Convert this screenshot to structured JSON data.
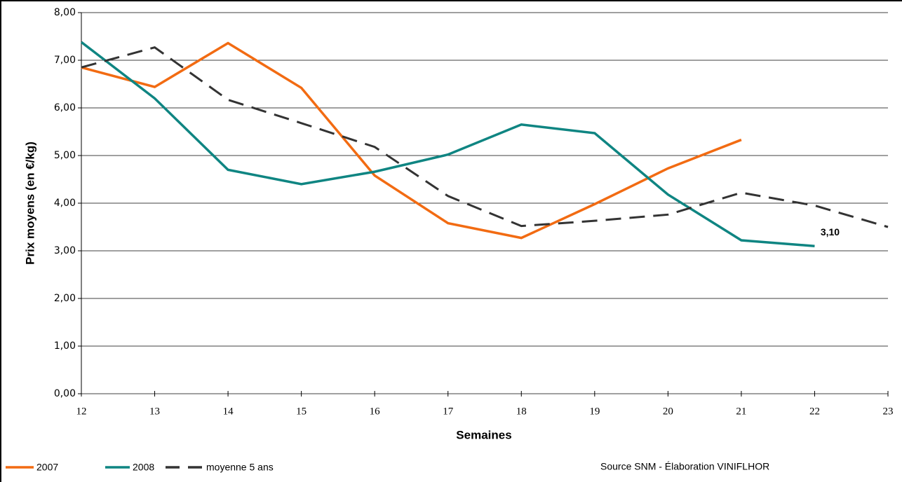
{
  "chart_data": {
    "type": "line",
    "x": [
      12,
      13,
      14,
      15,
      16,
      17,
      18,
      19,
      20,
      21,
      22,
      23
    ],
    "xlim": [
      12,
      23
    ],
    "xticks": [
      12,
      13,
      14,
      15,
      16,
      17,
      18,
      19,
      20,
      21,
      22,
      23
    ],
    "ylim": [
      0,
      8
    ],
    "yticks": [
      {
        "value": 0,
        "label": "0,00"
      },
      {
        "value": 1,
        "label": "1,00"
      },
      {
        "value": 2,
        "label": "2,00"
      },
      {
        "value": 3,
        "label": "3,00"
      },
      {
        "value": 4,
        "label": "4,00"
      },
      {
        "value": 5,
        "label": "5,00"
      },
      {
        "value": 6,
        "label": "6,00"
      },
      {
        "value": 7,
        "label": "7,00"
      },
      {
        "value": 8,
        "label": "8,00"
      }
    ],
    "grid": true,
    "x_label": "Semaines",
    "y_label": "Prix moyens (en €/kg)",
    "source": "Source SNM - Élaboration VINIFLHOR",
    "legend": "bottom-left",
    "series": [
      {
        "name": "2007",
        "color": "#f26b12",
        "dash": false,
        "values": [
          6.85,
          6.44,
          7.36,
          6.42,
          4.58,
          3.58,
          3.27,
          3.98,
          4.73,
          5.33,
          null,
          null
        ]
      },
      {
        "name": "2008",
        "color": "#0f8582",
        "dash": false,
        "values": [
          7.38,
          6.2,
          4.7,
          4.4,
          4.66,
          5.02,
          5.65,
          5.47,
          4.18,
          3.22,
          3.1,
          null
        ],
        "value_labels": [
          null,
          null,
          null,
          null,
          null,
          null,
          null,
          null,
          null,
          null,
          "3,10",
          null
        ]
      },
      {
        "name": "moyenne 5 ans",
        "color": "#333333",
        "dash": true,
        "values": [
          6.85,
          7.27,
          6.17,
          5.68,
          5.18,
          4.15,
          3.52,
          3.63,
          3.76,
          4.22,
          3.95,
          3.5
        ]
      }
    ]
  }
}
